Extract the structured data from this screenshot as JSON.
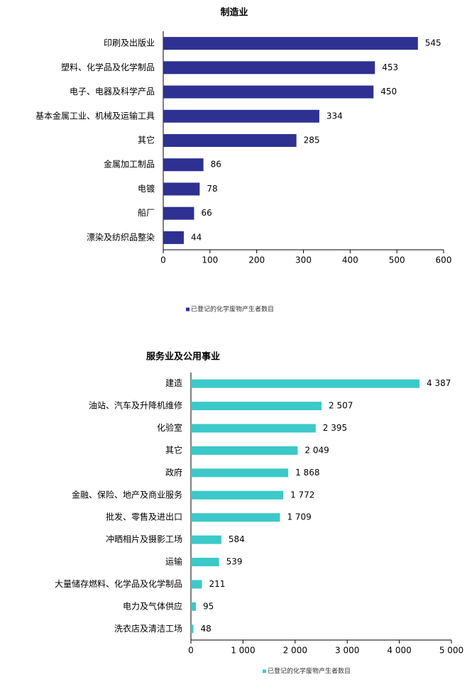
{
  "chart_data": [
    {
      "type": "bar",
      "orientation": "horizontal",
      "title": "制造业",
      "categories": [
        "印刷及出版业",
        "塑料、化学品及化学制品",
        "电子、电器及科学产品",
        "基本金属工业、机械及运输工具",
        "其它",
        "金属加工制品",
        "电镀",
        "船厂",
        "漂染及纺织品整染"
      ],
      "series": [
        {
          "name": "已登记的化学废物产生者数目",
          "color": "#2e3192",
          "values": [
            545,
            453,
            450,
            334,
            285,
            86,
            78,
            66,
            44
          ]
        }
      ],
      "xlim": [
        0,
        600
      ],
      "xticks": [
        0,
        100,
        200,
        300,
        400,
        500,
        600
      ],
      "legend": "bottom"
    },
    {
      "type": "bar",
      "orientation": "horizontal",
      "title": "服务业及公用事业",
      "categories": [
        "建造",
        "油站、汽车及升降机维修",
        "化验室",
        "其它",
        "政府",
        "金融、保险、地产及商业服务",
        "批发、零售及进出口",
        "冲晒相片及摄影工场",
        "运输",
        "大量储存燃料、化学品及化学制品",
        "电力及气体供应",
        "洗衣店及清洁工场"
      ],
      "series": [
        {
          "name": "已登记的化学废物产生者数目",
          "color": "#3cc9c9",
          "values": [
            4387,
            2507,
            2395,
            2049,
            1868,
            1772,
            1709,
            584,
            539,
            211,
            95,
            48
          ],
          "value_labels": [
            "4 387",
            "2 507",
            "2 395",
            "2 049",
            "1 868",
            "1 772",
            "1 709",
            "584",
            "539",
            "211",
            "95",
            "48"
          ]
        }
      ],
      "xlim": [
        0,
        5000
      ],
      "xticks": [
        0,
        {
          "value": 1000,
          "label": "1 000"
        },
        {
          "value": 2000,
          "label": "2 000"
        },
        {
          "value": 3000,
          "label": "3 000"
        },
        {
          "value": 4000,
          "label": "4 000"
        },
        {
          "value": 5000,
          "label": "5 000"
        }
      ],
      "legend": "bottom"
    }
  ]
}
